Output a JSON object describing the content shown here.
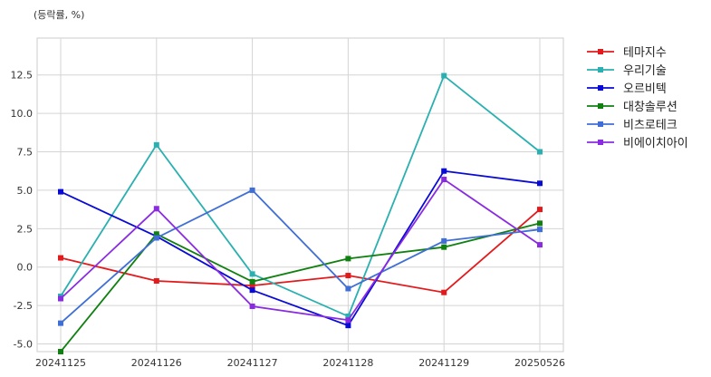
{
  "chart_data": {
    "type": "line",
    "title": "",
    "unit_label": "(등락률, %)",
    "xlabel": "",
    "ylabel": "",
    "categories": [
      "20241125",
      "20241126",
      "20241127",
      "20241128",
      "20241129",
      "20250526"
    ],
    "y_ticks": [
      -5.0,
      -2.5,
      0.0,
      2.5,
      5.0,
      7.5,
      10.0,
      12.5
    ],
    "y_tick_labels": [
      "-5.0",
      "-2.5",
      "0.0",
      "2.5",
      "5.0",
      "7.5",
      "10.0",
      "12.5"
    ],
    "ylim": [
      -5.5,
      14.9
    ],
    "grid": true,
    "legend_position": "right",
    "series": [
      {
        "name": "테마지수",
        "color": "#e31a1c",
        "values": [
          0.6,
          -0.9,
          -1.2,
          -0.55,
          -1.65,
          3.75
        ]
      },
      {
        "name": "우리기술",
        "color": "#2ab0b0",
        "values": [
          -1.9,
          7.95,
          -0.45,
          -3.2,
          12.45,
          7.5
        ]
      },
      {
        "name": "오르비텍",
        "color": "#0a0ad6",
        "values": [
          4.9,
          2.0,
          -1.5,
          -3.8,
          6.25,
          5.45
        ]
      },
      {
        "name": "대창솔루션",
        "color": "#108010",
        "values": [
          -5.5,
          2.15,
          -0.95,
          0.55,
          1.3,
          2.85
        ]
      },
      {
        "name": "비츠로테크",
        "color": "#3f6fd6",
        "values": [
          -3.65,
          1.9,
          5.0,
          -1.4,
          1.7,
          2.45
        ]
      },
      {
        "name": "비에이치아이",
        "color": "#8a2be2",
        "values": [
          -2.05,
          3.8,
          -2.55,
          -3.45,
          5.7,
          1.45
        ]
      }
    ]
  }
}
